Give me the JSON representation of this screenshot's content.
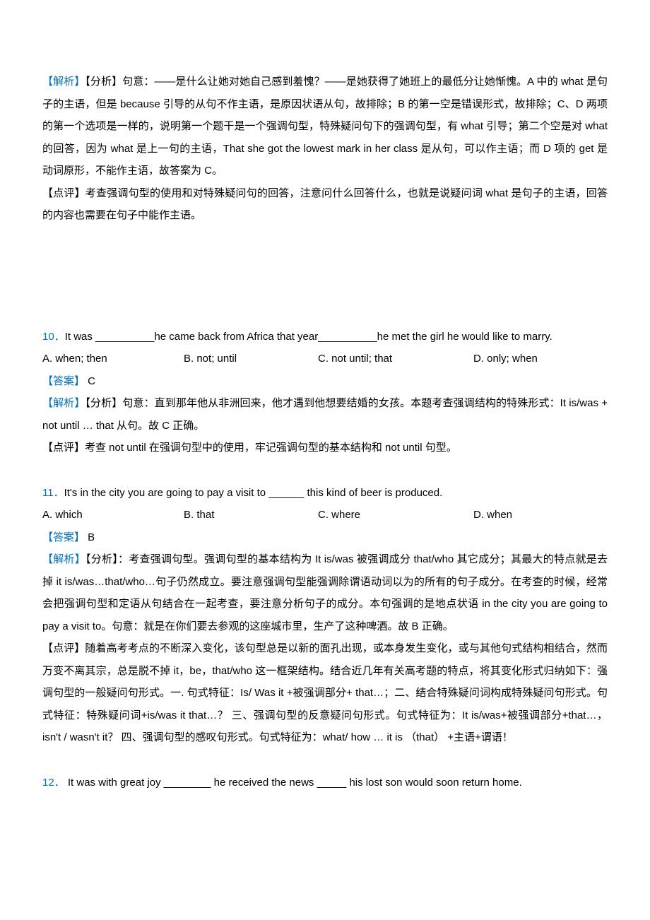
{
  "colors": {
    "page_bg": "#ffffff",
    "text": "#000000",
    "accent_blue": "#0070c0"
  },
  "typography": {
    "body_fontsize_pt": 11,
    "line_height": 2.1,
    "font_family": "Microsoft YaHei / SimSun"
  },
  "blocks": {
    "q9_analysis": {
      "label": "【解析】",
      "body": "【分析】句意：——是什么让她对她自己感到羞愧？——是她获得了她班上的最低分让她惭愧。A 中的 what 是句子的主语，但是 because 引导的从句不作主语，是原因状语从句，故排除；B 的第一空是错误形式，故排除；C、D 两项的第一个选项是一样的，说明第一个题干是一个强调句型，特殊疑问句下的强调句型，有 what 引导；第二个空是对 what 的回答，因为 what 是上一句的主语，That she got the lowest mark in her class 是从句，可以作主语；而 D 项的 get 是动词原形，不能作主语，故答案为 C。"
    },
    "q9_comment": "【点评】考查强调句型的使用和对特殊疑问句的回答，注意问什么回答什么，也就是说疑问词 what 是句子的主语，回答的内容也需要在句子中能作主语。",
    "q10": {
      "num": "10．",
      "stem": "It was __________he came back from Africa that year__________he met the girl he would like to marry.",
      "options": {
        "a": "A. when; then",
        "b": "B. not; until",
        "c": "C. not until; that",
        "d": "D. only; when"
      },
      "answer_label": "【答案】",
      "answer": " C",
      "analysis_label": "【解析】",
      "analysis": "【分析】句意：直到那年他从非洲回来，他才遇到他想要结婚的女孩。本题考查强调结构的特殊形式：It is/was + not until … that 从句。故 C 正确。",
      "comment": "【点评】考查 not until 在强调句型中的使用，牢记强调句型的基本结构和 not until 句型。"
    },
    "q11": {
      "num": "11．",
      "stem": "It's in the city you are going to pay a visit to ______ this kind of beer is produced.",
      "options": {
        "a": "A. which",
        "b": "B. that",
        "c": "C. where",
        "d": "D. when"
      },
      "answer_label": "【答案】",
      "answer": " B",
      "analysis_label": "【解析】",
      "analysis": "【分析】：考查强调句型。强调句型的基本结构为 It is/was 被强调成分 that/who 其它成分；其最大的特点就是去掉 it is/was…that/who…句子仍然成立。要注意强调句型能强调除谓语动词以为的所有的句子成分。在考查的时候，经常会把强调句型和定语从句结合在一起考查，要注意分析句子的成分。本句强调的是地点状语 in the city you are going to pay a visit to。句意：就是在你们要去参观的这座城市里，生产了这种啤酒。故 B 正确。",
      "comment": "【点评】随着高考考点的不断深入变化，该句型总是以新的面孔出现，或本身发生变化，或与其他句式结构相结合，然而万变不离其宗，总是脱不掉 it，be，that/who 这一框架结构。结合近几年有关高考题的特点，将其变化形式归纳如下：强调句型的一般疑问句形式。一. 句式特征：Is/ Was it +被强调部分+ that…；二、结合特殊疑问词构成特殊疑问句形式。句式特征：特殊疑问词+is/was it that…？ 三、强调句型的反意疑问句形式。句式特征为：It is/was+被强调部分+that…，isn't / wasn't it？ 四、强调句型的感叹句形式。句式特征为：what/ how … it is （that） +主语+谓语！"
    },
    "q12": {
      "num": "12．",
      "stem": " It was with great joy ________ he received the news _____ his lost son would soon return home."
    }
  }
}
